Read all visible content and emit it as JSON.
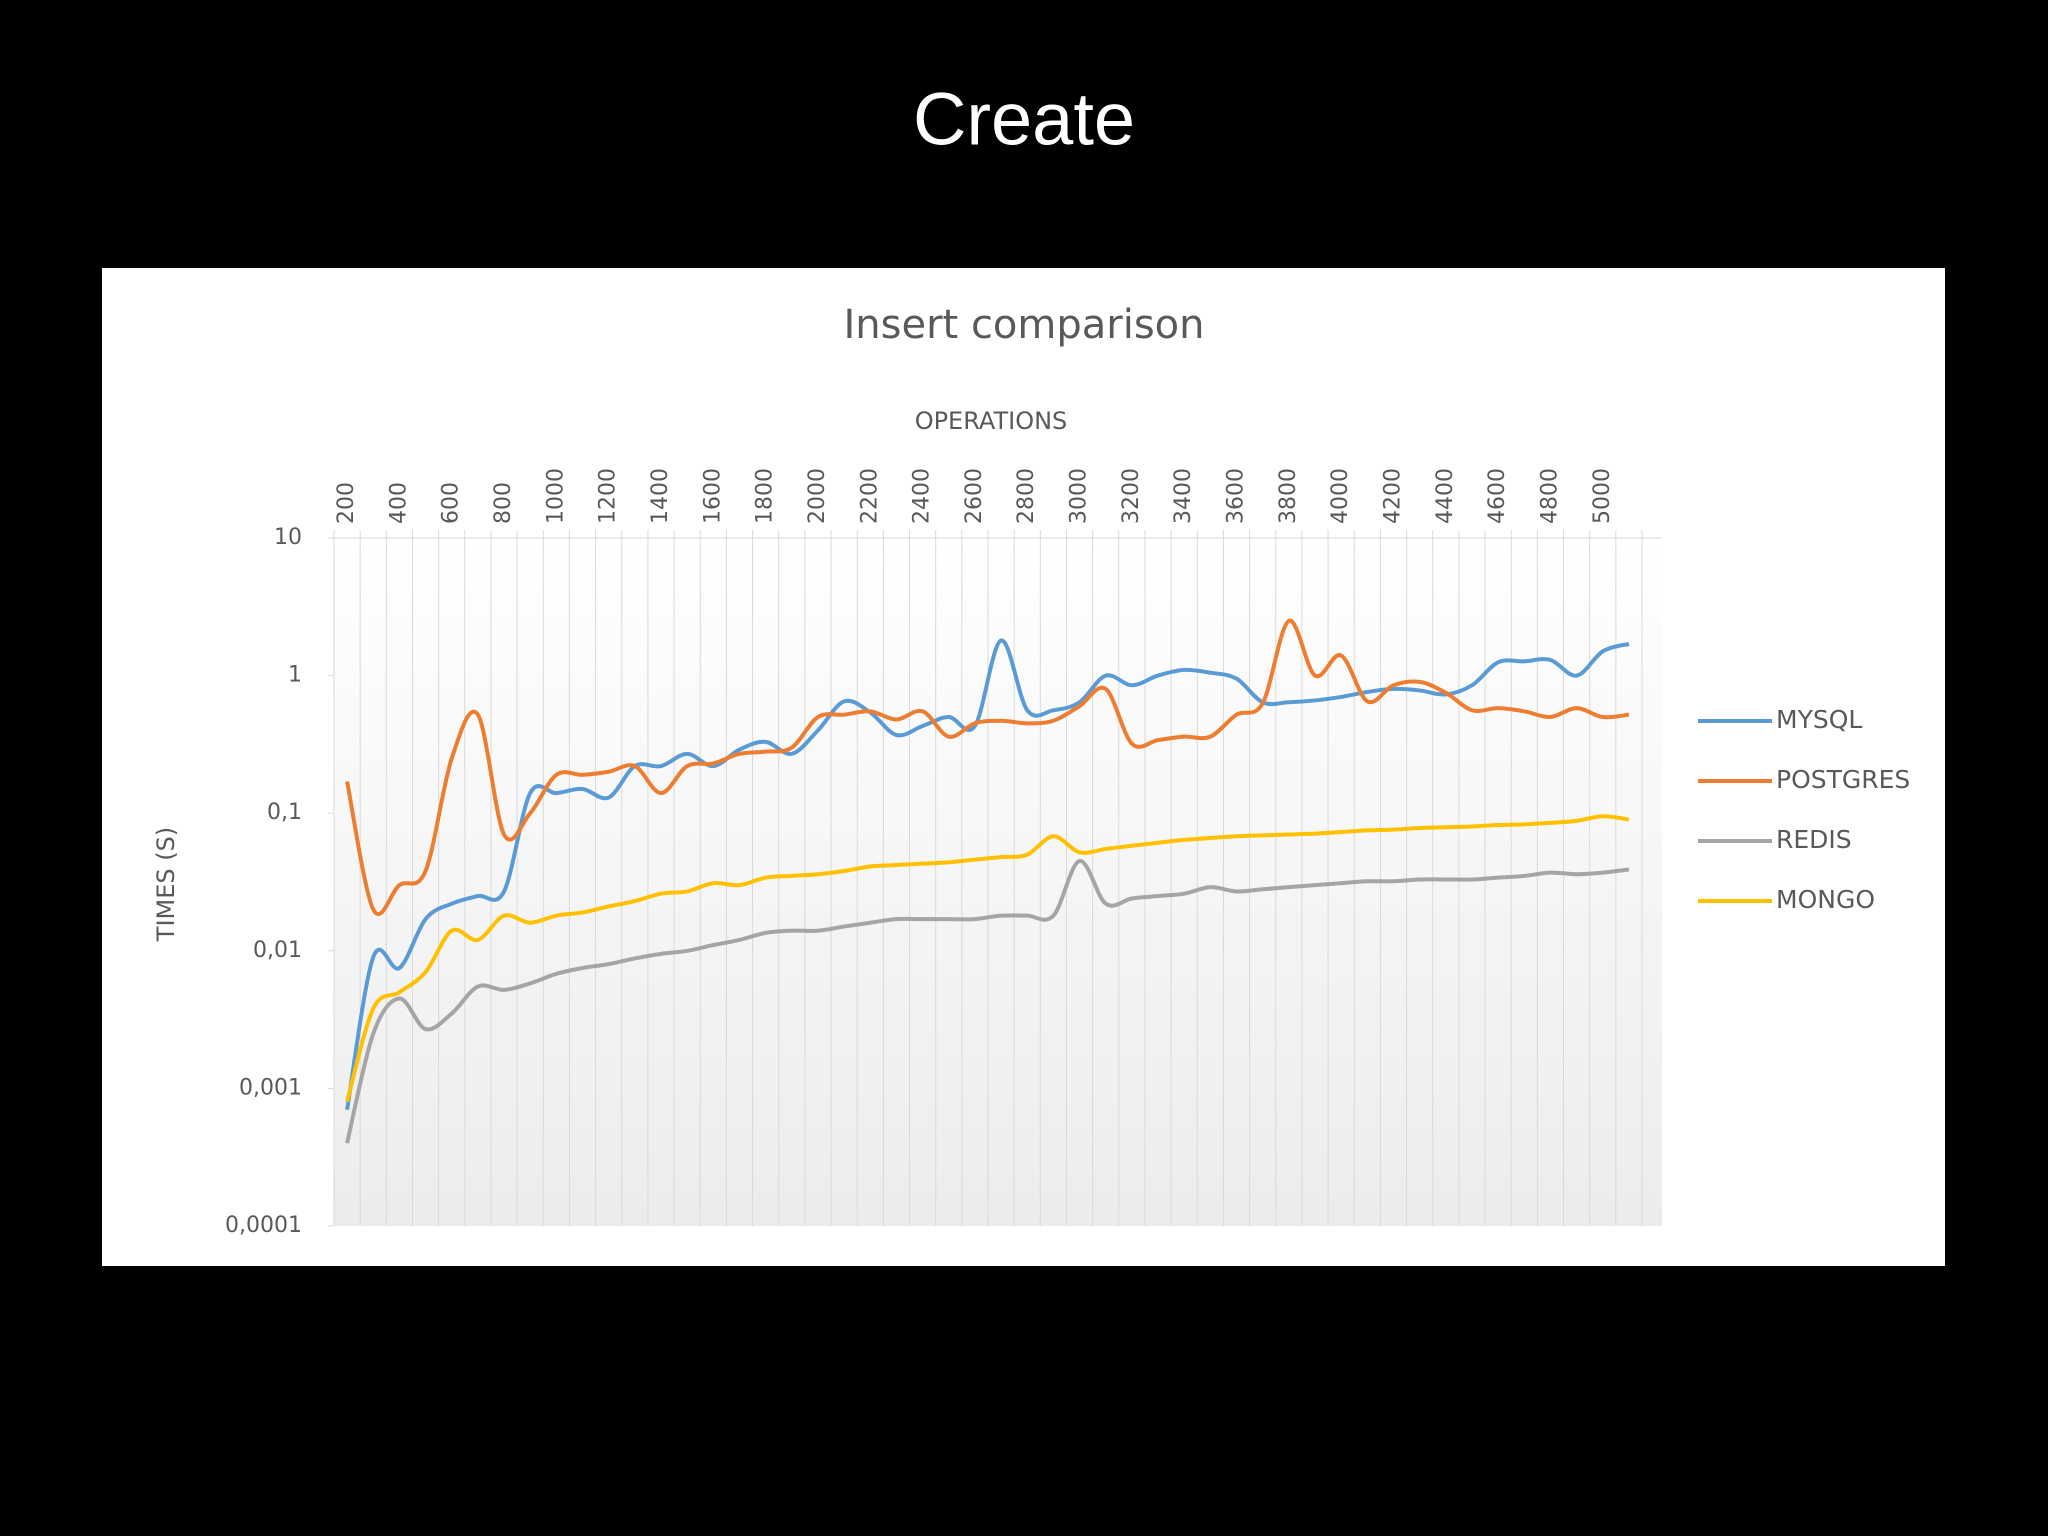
{
  "slide": {
    "title": "Create"
  },
  "chart_data": {
    "type": "line",
    "title": "Insert comparison",
    "x_label": "OPERATIONS",
    "y_label": "TIMES (S)",
    "log_scale": true,
    "grid": "x",
    "legend": "right",
    "smooth": true,
    "categories": [
      "200",
      null,
      "400",
      null,
      "600",
      null,
      "800",
      null,
      "1000",
      null,
      "1200",
      null,
      "1400",
      null,
      "1600",
      null,
      "1800",
      null,
      "2000",
      null,
      "2200",
      null,
      "2400",
      null,
      "2600",
      null,
      "2800",
      null,
      "3000",
      null,
      "3200",
      null,
      "3400",
      null,
      "3600",
      null,
      "3800",
      null,
      "4000",
      null,
      "4200",
      null,
      "4400",
      null,
      "4600",
      null,
      "4800",
      null,
      "5000",
      null
    ],
    "ylim": [
      0.0001,
      10
    ],
    "yticks": [
      {
        "value": 0.0001,
        "label": "0,0001"
      },
      {
        "value": 0.001,
        "label": "0,001"
      },
      {
        "value": 0.01,
        "label": "0,01"
      },
      {
        "value": 0.1,
        "label": "0,1"
      },
      1,
      10
    ],
    "series": [
      {
        "name": "MYSQL",
        "color": "#5b9bd5",
        "values": [
          0.0007,
          0.009,
          0.0075,
          0.017,
          0.022,
          0.025,
          0.027,
          0.14,
          0.14,
          0.15,
          0.13,
          0.22,
          0.22,
          0.27,
          0.22,
          0.29,
          0.33,
          0.27,
          0.4,
          0.65,
          0.54,
          0.37,
          0.43,
          0.5,
          0.43,
          1.8,
          0.56,
          0.56,
          0.64,
          1.0,
          0.85,
          1.0,
          1.1,
          1.05,
          0.95,
          0.64,
          0.64,
          0.66,
          0.7,
          0.76,
          0.8,
          0.78,
          0.73,
          0.85,
          1.25,
          1.27,
          1.3,
          1.0,
          1.5,
          1.7
        ]
      },
      {
        "name": "POSTGRES",
        "color": "#ed7d31",
        "values": [
          0.17,
          0.02,
          0.03,
          0.038,
          0.25,
          0.52,
          0.07,
          0.1,
          0.19,
          0.19,
          0.2,
          0.22,
          0.14,
          0.22,
          0.23,
          0.27,
          0.28,
          0.3,
          0.5,
          0.52,
          0.55,
          0.48,
          0.55,
          0.36,
          0.45,
          0.47,
          0.45,
          0.47,
          0.6,
          0.8,
          0.32,
          0.34,
          0.36,
          0.36,
          0.52,
          0.63,
          2.5,
          1.0,
          1.4,
          0.65,
          0.85,
          0.9,
          0.75,
          0.56,
          0.58,
          0.55,
          0.5,
          0.58,
          0.5,
          0.52
        ]
      },
      {
        "name": "REDIS",
        "color": "#a5a5a5",
        "values": [
          0.0004,
          0.0025,
          0.0045,
          0.0027,
          0.0035,
          0.0055,
          0.0052,
          0.0058,
          0.0068,
          0.0075,
          0.008,
          0.0088,
          0.0095,
          0.01,
          0.011,
          0.012,
          0.0135,
          0.014,
          0.014,
          0.015,
          0.016,
          0.017,
          0.017,
          0.017,
          0.017,
          0.018,
          0.018,
          0.018,
          0.045,
          0.022,
          0.024,
          0.025,
          0.026,
          0.029,
          0.027,
          0.028,
          0.029,
          0.03,
          0.031,
          0.032,
          0.032,
          0.033,
          0.033,
          0.033,
          0.034,
          0.035,
          0.037,
          0.036,
          0.037,
          0.039
        ]
      },
      {
        "name": "MONGO",
        "color": "#ffc000",
        "values": [
          0.0008,
          0.0038,
          0.005,
          0.007,
          0.014,
          0.012,
          0.018,
          0.016,
          0.018,
          0.019,
          0.021,
          0.023,
          0.026,
          0.027,
          0.031,
          0.03,
          0.034,
          0.035,
          0.036,
          0.038,
          0.041,
          0.042,
          0.043,
          0.044,
          0.046,
          0.048,
          0.05,
          0.068,
          0.052,
          0.055,
          0.058,
          0.061,
          0.064,
          0.066,
          0.068,
          0.069,
          0.07,
          0.071,
          0.073,
          0.075,
          0.076,
          0.078,
          0.079,
          0.08,
          0.082,
          0.083,
          0.085,
          0.088,
          0.095,
          0.09
        ]
      }
    ]
  }
}
